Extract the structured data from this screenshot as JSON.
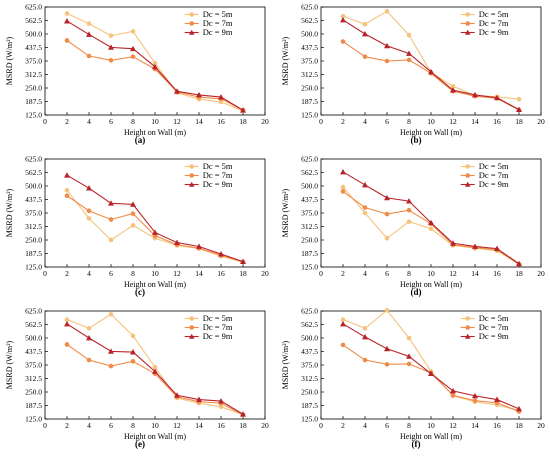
{
  "chart_data": [
    {
      "type": "line",
      "panel_label": "(a)",
      "xlabel": "Height on Wall (m)",
      "ylabel": "MSRD (W/m²)",
      "xlim": [
        0,
        20
      ],
      "ylim": [
        125,
        625
      ],
      "xticks": [
        "0",
        "2",
        "4",
        "6",
        "8",
        "10",
        "12",
        "14",
        "16",
        "18",
        "20"
      ],
      "yticks": [
        "125.0",
        "187.5",
        "250.0",
        "312.5",
        "375.0",
        "437.5",
        "500.0",
        "562.5",
        "625.0"
      ],
      "x": [
        2,
        4,
        6,
        8,
        10,
        12,
        14,
        16,
        18
      ],
      "series": [
        {
          "name": "Dc = 5m",
          "color": "#f6c37d",
          "marker": "circle",
          "values": [
            595,
            548,
            492,
            512,
            365,
            228,
            198,
            185,
            145
          ]
        },
        {
          "name": "Dc = 7m",
          "color": "#ef8a47",
          "marker": "circle",
          "values": [
            470,
            398,
            378,
            395,
            338,
            232,
            208,
            200,
            148
          ]
        },
        {
          "name": "Dc = 9m",
          "color": "#b8232a",
          "marker": "triangle",
          "values": [
            560,
            498,
            438,
            432,
            348,
            235,
            218,
            208,
            147
          ]
        }
      ],
      "legend": "top-right",
      "grid": false
    },
    {
      "type": "line",
      "panel_label": "(b)",
      "xlabel": "Height on Wall (m)",
      "ylabel": "MSRD (W/m²)",
      "xlim": [
        0,
        20
      ],
      "ylim": [
        125,
        625
      ],
      "xticks": [
        "0",
        "2",
        "4",
        "6",
        "8",
        "10",
        "12",
        "14",
        "16",
        "18",
        "20"
      ],
      "yticks": [
        "125.0",
        "187.5",
        "250.0",
        "312.5",
        "375.0",
        "437.5",
        "500.0",
        "562.5",
        "625.0"
      ],
      "x": [
        2,
        4,
        6,
        8,
        10,
        12,
        14,
        16,
        18
      ],
      "series": [
        {
          "name": "Dc = 5m",
          "color": "#f6c37d",
          "marker": "circle",
          "values": [
            582,
            545,
            605,
            495,
            322,
            258,
            215,
            210,
            198
          ]
        },
        {
          "name": "Dc = 7m",
          "color": "#ef8a47",
          "marker": "circle",
          "values": [
            465,
            395,
            375,
            380,
            318,
            235,
            212,
            202,
            148
          ]
        },
        {
          "name": "Dc = 9m",
          "color": "#b8232a",
          "marker": "triangle",
          "values": [
            565,
            500,
            445,
            410,
            325,
            240,
            218,
            205,
            150
          ]
        }
      ],
      "legend": "top-right",
      "grid": false
    },
    {
      "type": "line",
      "panel_label": "(c)",
      "xlabel": "Height on Wall (m)",
      "ylabel": "MSRD (W/m²)",
      "xlim": [
        0,
        20
      ],
      "ylim": [
        125,
        625
      ],
      "xticks": [
        "0",
        "2",
        "4",
        "6",
        "8",
        "10",
        "12",
        "14",
        "16",
        "18",
        "20"
      ],
      "yticks": [
        "125.0",
        "187.5",
        "250.0",
        "312.5",
        "375.0",
        "437.5",
        "500.0",
        "562.5",
        "625.0"
      ],
      "x": [
        2,
        4,
        6,
        8,
        10,
        12,
        14,
        16,
        18
      ],
      "series": [
        {
          "name": "Dc = 5m",
          "color": "#f6c37d",
          "marker": "circle",
          "values": [
            480,
            350,
            250,
            318,
            258,
            225,
            210,
            175,
            148
          ]
        },
        {
          "name": "Dc = 7m",
          "color": "#ef8a47",
          "marker": "circle",
          "values": [
            455,
            385,
            345,
            372,
            270,
            228,
            212,
            180,
            148
          ]
        },
        {
          "name": "Dc = 9m",
          "color": "#b8232a",
          "marker": "triangle",
          "values": [
            550,
            490,
            420,
            415,
            285,
            238,
            220,
            185,
            150
          ]
        }
      ],
      "legend": "top-right",
      "grid": false
    },
    {
      "type": "line",
      "panel_label": "(d)",
      "xlabel": "Height on Wall (m)",
      "ylabel": "MSRD (W/m²)",
      "xlim": [
        0,
        20
      ],
      "ylim": [
        125,
        625
      ],
      "xticks": [
        "0",
        "2",
        "4",
        "6",
        "8",
        "10",
        "12",
        "14",
        "16",
        "18",
        "20"
      ],
      "yticks": [
        "125.0",
        "187.5",
        "250.0",
        "312.5",
        "375.0",
        "437.5",
        "500.0",
        "562.5",
        "625.0"
      ],
      "x": [
        2,
        4,
        6,
        8,
        10,
        12,
        14,
        16,
        18
      ],
      "series": [
        {
          "name": "Dc = 5m",
          "color": "#f6c37d",
          "marker": "circle",
          "values": [
            495,
            375,
            258,
            335,
            302,
            225,
            212,
            200,
            138
          ]
        },
        {
          "name": "Dc = 7m",
          "color": "#ef8a47",
          "marker": "circle",
          "values": [
            475,
            400,
            370,
            388,
            325,
            228,
            215,
            205,
            138
          ]
        },
        {
          "name": "Dc = 9m",
          "color": "#b8232a",
          "marker": "triangle",
          "values": [
            565,
            505,
            445,
            430,
            330,
            235,
            220,
            210,
            140
          ]
        }
      ],
      "legend": "top-right",
      "grid": false
    },
    {
      "type": "line",
      "panel_label": "(e)",
      "xlabel": "Height on Wall (m)",
      "ylabel": "MSRD (W/m²)",
      "xlim": [
        0,
        20
      ],
      "ylim": [
        125,
        625
      ],
      "xticks": [
        "0",
        "2",
        "4",
        "6",
        "8",
        "10",
        "12",
        "14",
        "16",
        "18",
        "20"
      ],
      "yticks": [
        "125.0",
        "187.5",
        "250.0",
        "312.5",
        "375.0",
        "437.5",
        "500.0",
        "562.5",
        "625.0"
      ],
      "x": [
        2,
        4,
        6,
        8,
        10,
        12,
        14,
        16,
        18
      ],
      "series": [
        {
          "name": "Dc = 5m",
          "color": "#f6c37d",
          "marker": "circle",
          "values": [
            585,
            545,
            610,
            510,
            365,
            222,
            198,
            182,
            145
          ]
        },
        {
          "name": "Dc = 7m",
          "color": "#ef8a47",
          "marker": "circle",
          "values": [
            470,
            398,
            370,
            392,
            335,
            228,
            205,
            198,
            145
          ]
        },
        {
          "name": "Dc = 9m",
          "color": "#b8232a",
          "marker": "triangle",
          "values": [
            565,
            500,
            438,
            435,
            345,
            235,
            215,
            208,
            147
          ]
        }
      ],
      "legend": "top-right",
      "grid": false
    },
    {
      "type": "line",
      "panel_label": "(f)",
      "xlabel": "Height on Wall (m)",
      "ylabel": "MSRD (W/m²)",
      "xlim": [
        0,
        20
      ],
      "ylim": [
        125,
        625
      ],
      "xticks": [
        "0",
        "2",
        "4",
        "6",
        "8",
        "10",
        "12",
        "14",
        "16",
        "18",
        "20"
      ],
      "yticks": [
        "125.0",
        "187.5",
        "250.0",
        "312.5",
        "375.0",
        "437.5",
        "500.0",
        "562.5",
        "625.0"
      ],
      "x": [
        2,
        4,
        6,
        8,
        10,
        12,
        14,
        16,
        18
      ],
      "series": [
        {
          "name": "Dc = 5m",
          "color": "#f6c37d",
          "marker": "circle",
          "values": [
            585,
            545,
            628,
            500,
            345,
            232,
            205,
            190,
            165
          ]
        },
        {
          "name": "Dc = 7m",
          "color": "#ef8a47",
          "marker": "circle",
          "values": [
            468,
            398,
            378,
            380,
            338,
            235,
            210,
            200,
            160
          ]
        },
        {
          "name": "Dc = 9m",
          "color": "#b8232a",
          "marker": "triangle",
          "values": [
            565,
            505,
            450,
            415,
            335,
            255,
            232,
            215,
            172
          ]
        }
      ],
      "legend": "top-right",
      "grid": false
    }
  ]
}
